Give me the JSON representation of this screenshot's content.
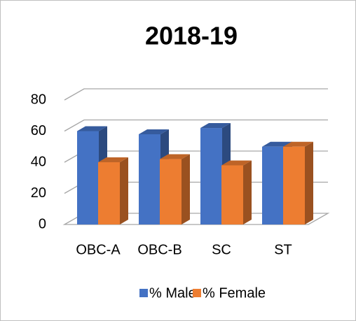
{
  "chart_data": {
    "type": "bar",
    "title": "2018-19",
    "categories": [
      "OBC-A",
      "OBC-B",
      "SC",
      "ST"
    ],
    "series": [
      {
        "name": "% Male",
        "color": "#4472c4",
        "values": [
          60,
          58,
          62,
          50
        ]
      },
      {
        "name": "% Female",
        "color": "#ed7d31",
        "values": [
          40,
          42,
          38,
          50
        ]
      }
    ],
    "ylim": [
      0,
      80
    ],
    "yticks": [
      0,
      20,
      40,
      60,
      80
    ],
    "grid": true,
    "legend": "bottom"
  }
}
